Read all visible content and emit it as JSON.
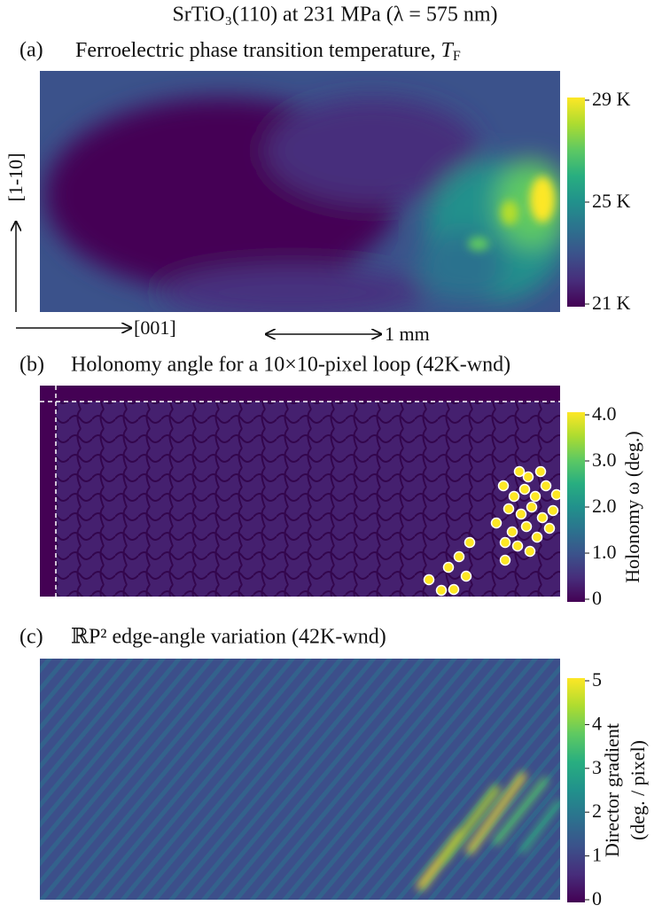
{
  "title": "SrTiO₃(110) at 231 MPa (λ = 575 nm)",
  "chart_data": [
    {
      "type": "heatmap",
      "panel": "(a)",
      "title": "Ferroelectric phase transition temperature,",
      "title_symbol": "T",
      "title_symbol_subscript": "F",
      "y_axis_label": "[1-10]",
      "x_axis_label": "[001]",
      "scale_bar": "1 mm",
      "colormap": "viridis",
      "clim": [
        21,
        29
      ],
      "cticks": [
        {
          "value": 21,
          "label": "21 K"
        },
        {
          "value": 25,
          "label": "25 K"
        },
        {
          "value": 29,
          "label": "29 K"
        }
      ]
    },
    {
      "type": "heatmap",
      "panel": "(b)",
      "title": "Holonomy angle for a 10×10-pixel loop (42K-wnd)",
      "colormap": "viridis",
      "colorbar_label": "Holonomy ω (deg.)",
      "clim": [
        0,
        4
      ],
      "cticks": [
        0,
        {
          "value": 1,
          "label": "1.0"
        },
        {
          "value": 2,
          "label": "2.0"
        },
        {
          "value": 3,
          "label": "3.0"
        },
        {
          "value": 4,
          "label": "4.0"
        }
      ]
    },
    {
      "type": "heatmap",
      "panel": "(c)",
      "title": "ℝP² edge-angle variation (42K-wnd)",
      "colormap": "viridis",
      "colorbar_label": [
        "Director gradient",
        "(deg. / pixel)"
      ],
      "clim": [
        0,
        5
      ],
      "cticks": [
        0,
        1,
        2,
        3,
        4,
        5
      ]
    }
  ]
}
